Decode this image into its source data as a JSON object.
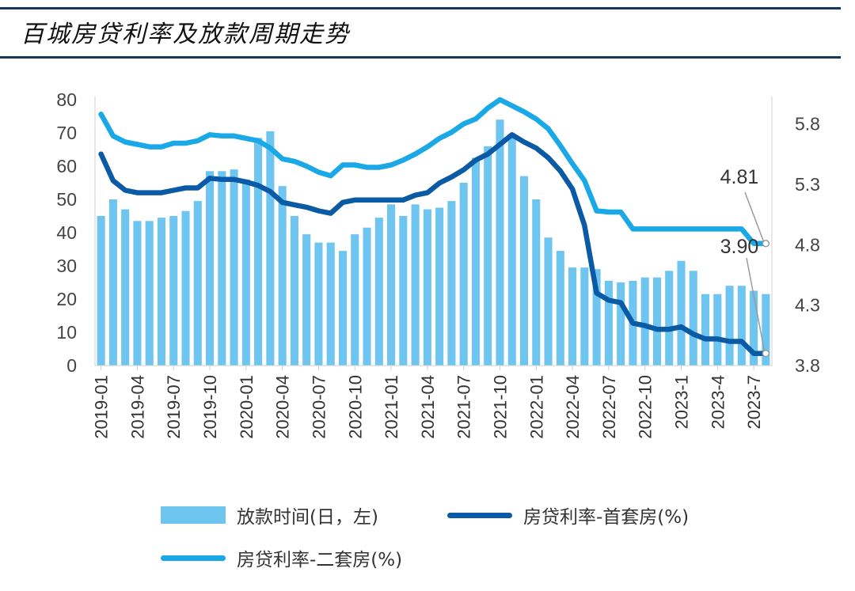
{
  "title": "百城房贷利率及放款周期走势",
  "colors": {
    "bar": "#6ec6f0",
    "line1": "#0b5aa6",
    "line2": "#1aa8e6",
    "rule": "#17375e"
  },
  "chart_data": {
    "type": "bar+line",
    "x_tick_labels": [
      "2019-01",
      "2019-04",
      "2019-07",
      "2019-10",
      "2020-01",
      "2020-04",
      "2020-07",
      "2020-10",
      "2021-01",
      "2021-04",
      "2021-07",
      "2021-10",
      "2022-01",
      "2022-04",
      "2022-07",
      "2022-10",
      "2023-1",
      "2023-4",
      "2023-7"
    ],
    "y_left": {
      "ticks": [
        0,
        10,
        20,
        30,
        40,
        50,
        60,
        70,
        80
      ],
      "range": [
        0,
        80
      ]
    },
    "y_right": {
      "ticks": [
        "3.8",
        "4.3",
        "4.8",
        "5.3",
        "5.8"
      ],
      "range": [
        3.8,
        6.0
      ]
    },
    "series": [
      {
        "name": "放款时间(日，左)",
        "type": "bar",
        "axis": "left",
        "values": [
          45,
          50,
          47,
          43.5,
          43.5,
          44.5,
          45,
          46.5,
          49.5,
          58.5,
          58.5,
          59,
          56,
          68.5,
          70.5,
          54,
          45,
          39.5,
          37,
          37,
          34.5,
          39.5,
          41.5,
          44.5,
          48.5,
          45,
          48.5,
          47,
          47.5,
          49.5,
          55,
          62.5,
          66,
          74,
          69.5,
          57,
          50,
          38.5,
          34.5,
          29.5,
          29.5,
          29,
          25.5,
          25,
          25.5,
          26.5,
          26.5,
          28.5,
          31.5,
          28.5,
          21.5,
          21.5,
          24,
          24,
          22.5,
          21.5
        ]
      },
      {
        "name": "房贷利率-首套房(%)",
        "type": "line",
        "axis": "right",
        "values": [
          5.55,
          5.33,
          5.25,
          5.23,
          5.23,
          5.23,
          5.25,
          5.27,
          5.27,
          5.35,
          5.34,
          5.34,
          5.32,
          5.29,
          5.24,
          5.15,
          5.13,
          5.11,
          5.08,
          5.06,
          5.15,
          5.17,
          5.17,
          5.17,
          5.17,
          5.17,
          5.21,
          5.23,
          5.31,
          5.36,
          5.42,
          5.5,
          5.55,
          5.63,
          5.71,
          5.65,
          5.6,
          5.52,
          5.41,
          5.26,
          4.96,
          4.4,
          4.34,
          4.32,
          4.15,
          4.13,
          4.1,
          4.1,
          4.12,
          4.06,
          4.02,
          4.02,
          4.0,
          4.0,
          3.9,
          3.9
        ]
      },
      {
        "name": "房贷利率-二套房(%)",
        "type": "line",
        "axis": "right",
        "values": [
          5.88,
          5.7,
          5.65,
          5.63,
          5.61,
          5.61,
          5.64,
          5.64,
          5.66,
          5.71,
          5.7,
          5.7,
          5.68,
          5.66,
          5.6,
          5.51,
          5.49,
          5.45,
          5.4,
          5.37,
          5.46,
          5.46,
          5.44,
          5.44,
          5.46,
          5.5,
          5.55,
          5.61,
          5.68,
          5.73,
          5.8,
          5.84,
          5.93,
          6.0,
          5.95,
          5.9,
          5.84,
          5.76,
          5.62,
          5.47,
          5.33,
          5.08,
          5.07,
          5.07,
          4.93,
          4.93,
          4.93,
          4.93,
          4.93,
          4.93,
          4.93,
          4.93,
          4.93,
          4.93,
          4.81,
          4.81
        ]
      }
    ],
    "annotations": [
      {
        "text": "4.81",
        "series": "房贷利率-二套房(%)"
      },
      {
        "text": "3.90",
        "series": "房贷利率-首套房(%)"
      }
    ],
    "legend_position": "bottom"
  }
}
